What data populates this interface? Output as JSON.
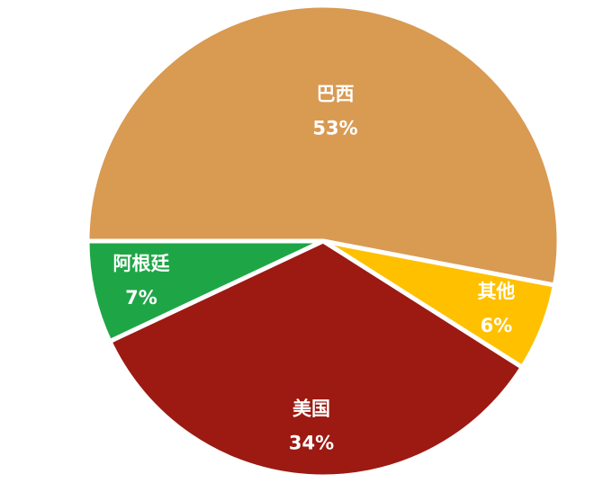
{
  "chart_data": {
    "type": "pie",
    "categories": [
      "巴西",
      "其他",
      "美国",
      "阿根廷"
    ],
    "values": [
      53,
      6,
      34,
      7
    ],
    "value_labels": [
      "53%",
      "6%",
      "34%",
      "7%"
    ],
    "colors": [
      "#d99a52",
      "#ffc000",
      "#9c1a12",
      "#1ea646"
    ]
  }
}
